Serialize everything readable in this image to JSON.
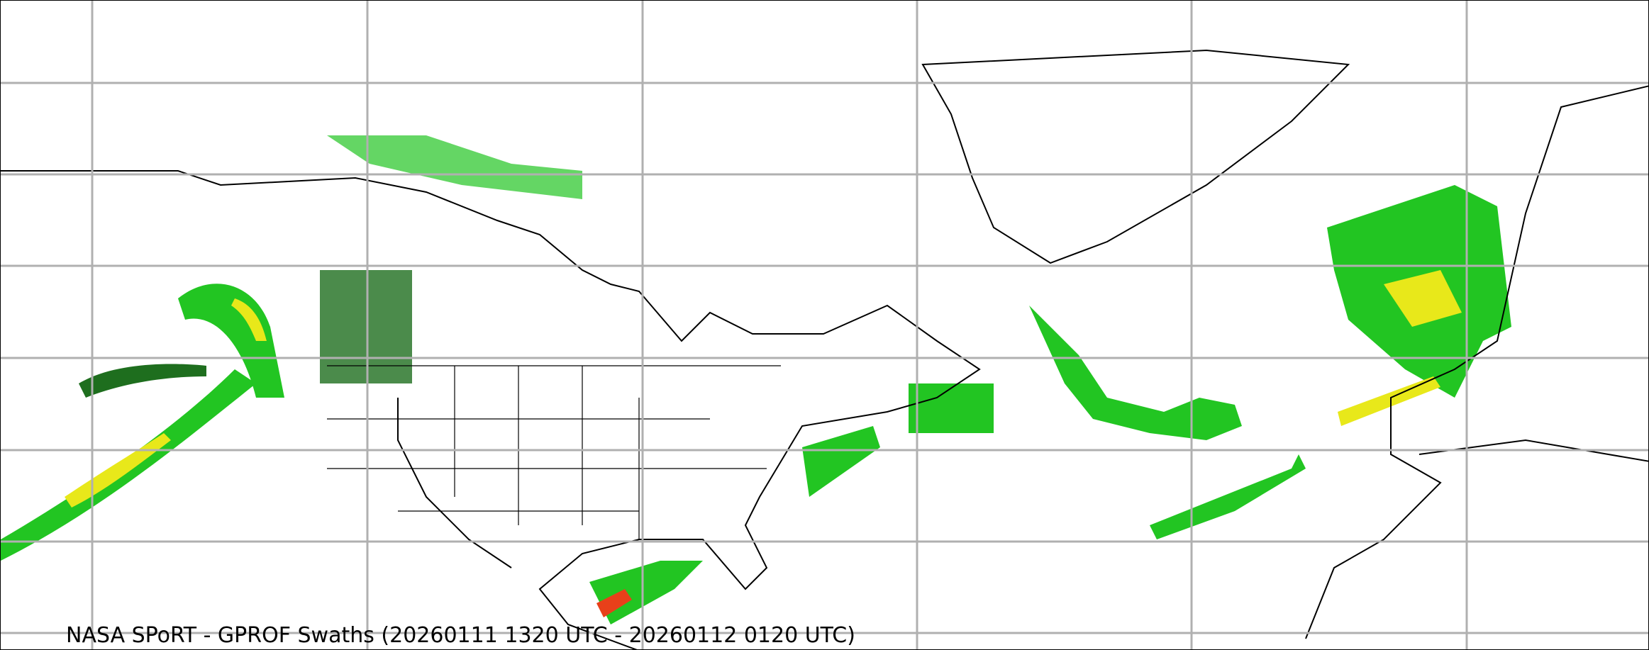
{
  "map": {
    "caption": "NASA SPoRT - GPROF Swaths (20260111 1320 UTC - 20260112 0120 UTC)",
    "projection": "plate-carree",
    "gridlines": true,
    "colors": {
      "grid": "#b0b0b0",
      "coastline": "#000000",
      "precip_light": "#1e6e1e",
      "precip_mid": "#22c522",
      "precip_high": "#e8e81a",
      "precip_max": "#e8401a"
    }
  }
}
